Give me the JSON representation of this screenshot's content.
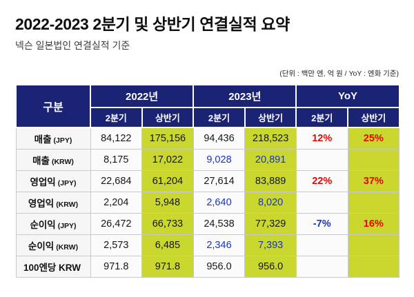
{
  "colors": {
    "header_navy": "#1b2375",
    "highlight_lime": "#c9d72e",
    "increase_red": "#f20000",
    "decrease_blue": "#1733c4",
    "row_label_bg": "#f6f6f6",
    "cell_bg": "#fbfbfb"
  },
  "chart_data": {
    "type": "table",
    "title": "2022-2023 2분기 및 상반기 연결실적 요약",
    "subtitle": "넥슨 일본법인 연결실적 기준",
    "unit_note": "(단위 : 백만 엔, 억 원 / YoY : 엔화 기준)",
    "corner_label": "구분",
    "column_groups": [
      {
        "label": "2022년",
        "sub": [
          "2분기",
          "상반기"
        ]
      },
      {
        "label": "2023년",
        "sub": [
          "2분기",
          "상반기"
        ]
      },
      {
        "label": "YoY",
        "sub": [
          "2분기",
          "상반기"
        ]
      }
    ],
    "highlight_columns": [
      "2022년 상반기",
      "2023년 상반기",
      "YoY 상반기"
    ],
    "rows": [
      {
        "label": "매출",
        "label_sub": "(JPY)",
        "cells": [
          {
            "text": "84,122",
            "tone": ""
          },
          {
            "text": "175,156",
            "tone": ""
          },
          {
            "text": "94,436",
            "tone": ""
          },
          {
            "text": "218,523",
            "tone": ""
          },
          {
            "text": "12%",
            "tone": "up"
          },
          {
            "text": "25%",
            "tone": "up"
          }
        ]
      },
      {
        "label": "매출",
        "label_sub": "(KRW)",
        "cells": [
          {
            "text": "8,175",
            "tone": ""
          },
          {
            "text": "17,022",
            "tone": ""
          },
          {
            "text": "9,028",
            "tone": "krw"
          },
          {
            "text": "20,891",
            "tone": "krw"
          },
          {
            "text": "",
            "tone": ""
          },
          {
            "text": "",
            "tone": ""
          }
        ]
      },
      {
        "label": "영업익",
        "label_sub": "(JPY)",
        "cells": [
          {
            "text": "22,684",
            "tone": ""
          },
          {
            "text": "61,204",
            "tone": ""
          },
          {
            "text": "27,614",
            "tone": ""
          },
          {
            "text": "83,889",
            "tone": ""
          },
          {
            "text": "22%",
            "tone": "up"
          },
          {
            "text": "37%",
            "tone": "up"
          }
        ]
      },
      {
        "label": "영업익",
        "label_sub": "(KRW)",
        "cells": [
          {
            "text": "2,204",
            "tone": ""
          },
          {
            "text": "5,948",
            "tone": ""
          },
          {
            "text": "2,640",
            "tone": "krw"
          },
          {
            "text": "8,020",
            "tone": "krw"
          },
          {
            "text": "",
            "tone": ""
          },
          {
            "text": "",
            "tone": ""
          }
        ]
      },
      {
        "label": "순이익",
        "label_sub": "(JPY)",
        "cells": [
          {
            "text": "26,472",
            "tone": ""
          },
          {
            "text": "66,733",
            "tone": ""
          },
          {
            "text": "24,538",
            "tone": ""
          },
          {
            "text": "77,329",
            "tone": ""
          },
          {
            "text": "-7%",
            "tone": "down"
          },
          {
            "text": "16%",
            "tone": "up"
          }
        ]
      },
      {
        "label": "순이익",
        "label_sub": "(KRW)",
        "cells": [
          {
            "text": "2,573",
            "tone": ""
          },
          {
            "text": "6,485",
            "tone": ""
          },
          {
            "text": "2,346",
            "tone": "krw"
          },
          {
            "text": "7,393",
            "tone": "krw"
          },
          {
            "text": "",
            "tone": ""
          },
          {
            "text": "",
            "tone": ""
          }
        ]
      },
      {
        "label": "100엔당 KRW",
        "label_sub": "",
        "cells": [
          {
            "text": "971.8",
            "tone": ""
          },
          {
            "text": "971.8",
            "tone": ""
          },
          {
            "text": "956.0",
            "tone": ""
          },
          {
            "text": "956.0",
            "tone": ""
          },
          {
            "text": "",
            "tone": ""
          },
          {
            "text": "",
            "tone": ""
          }
        ]
      }
    ]
  }
}
